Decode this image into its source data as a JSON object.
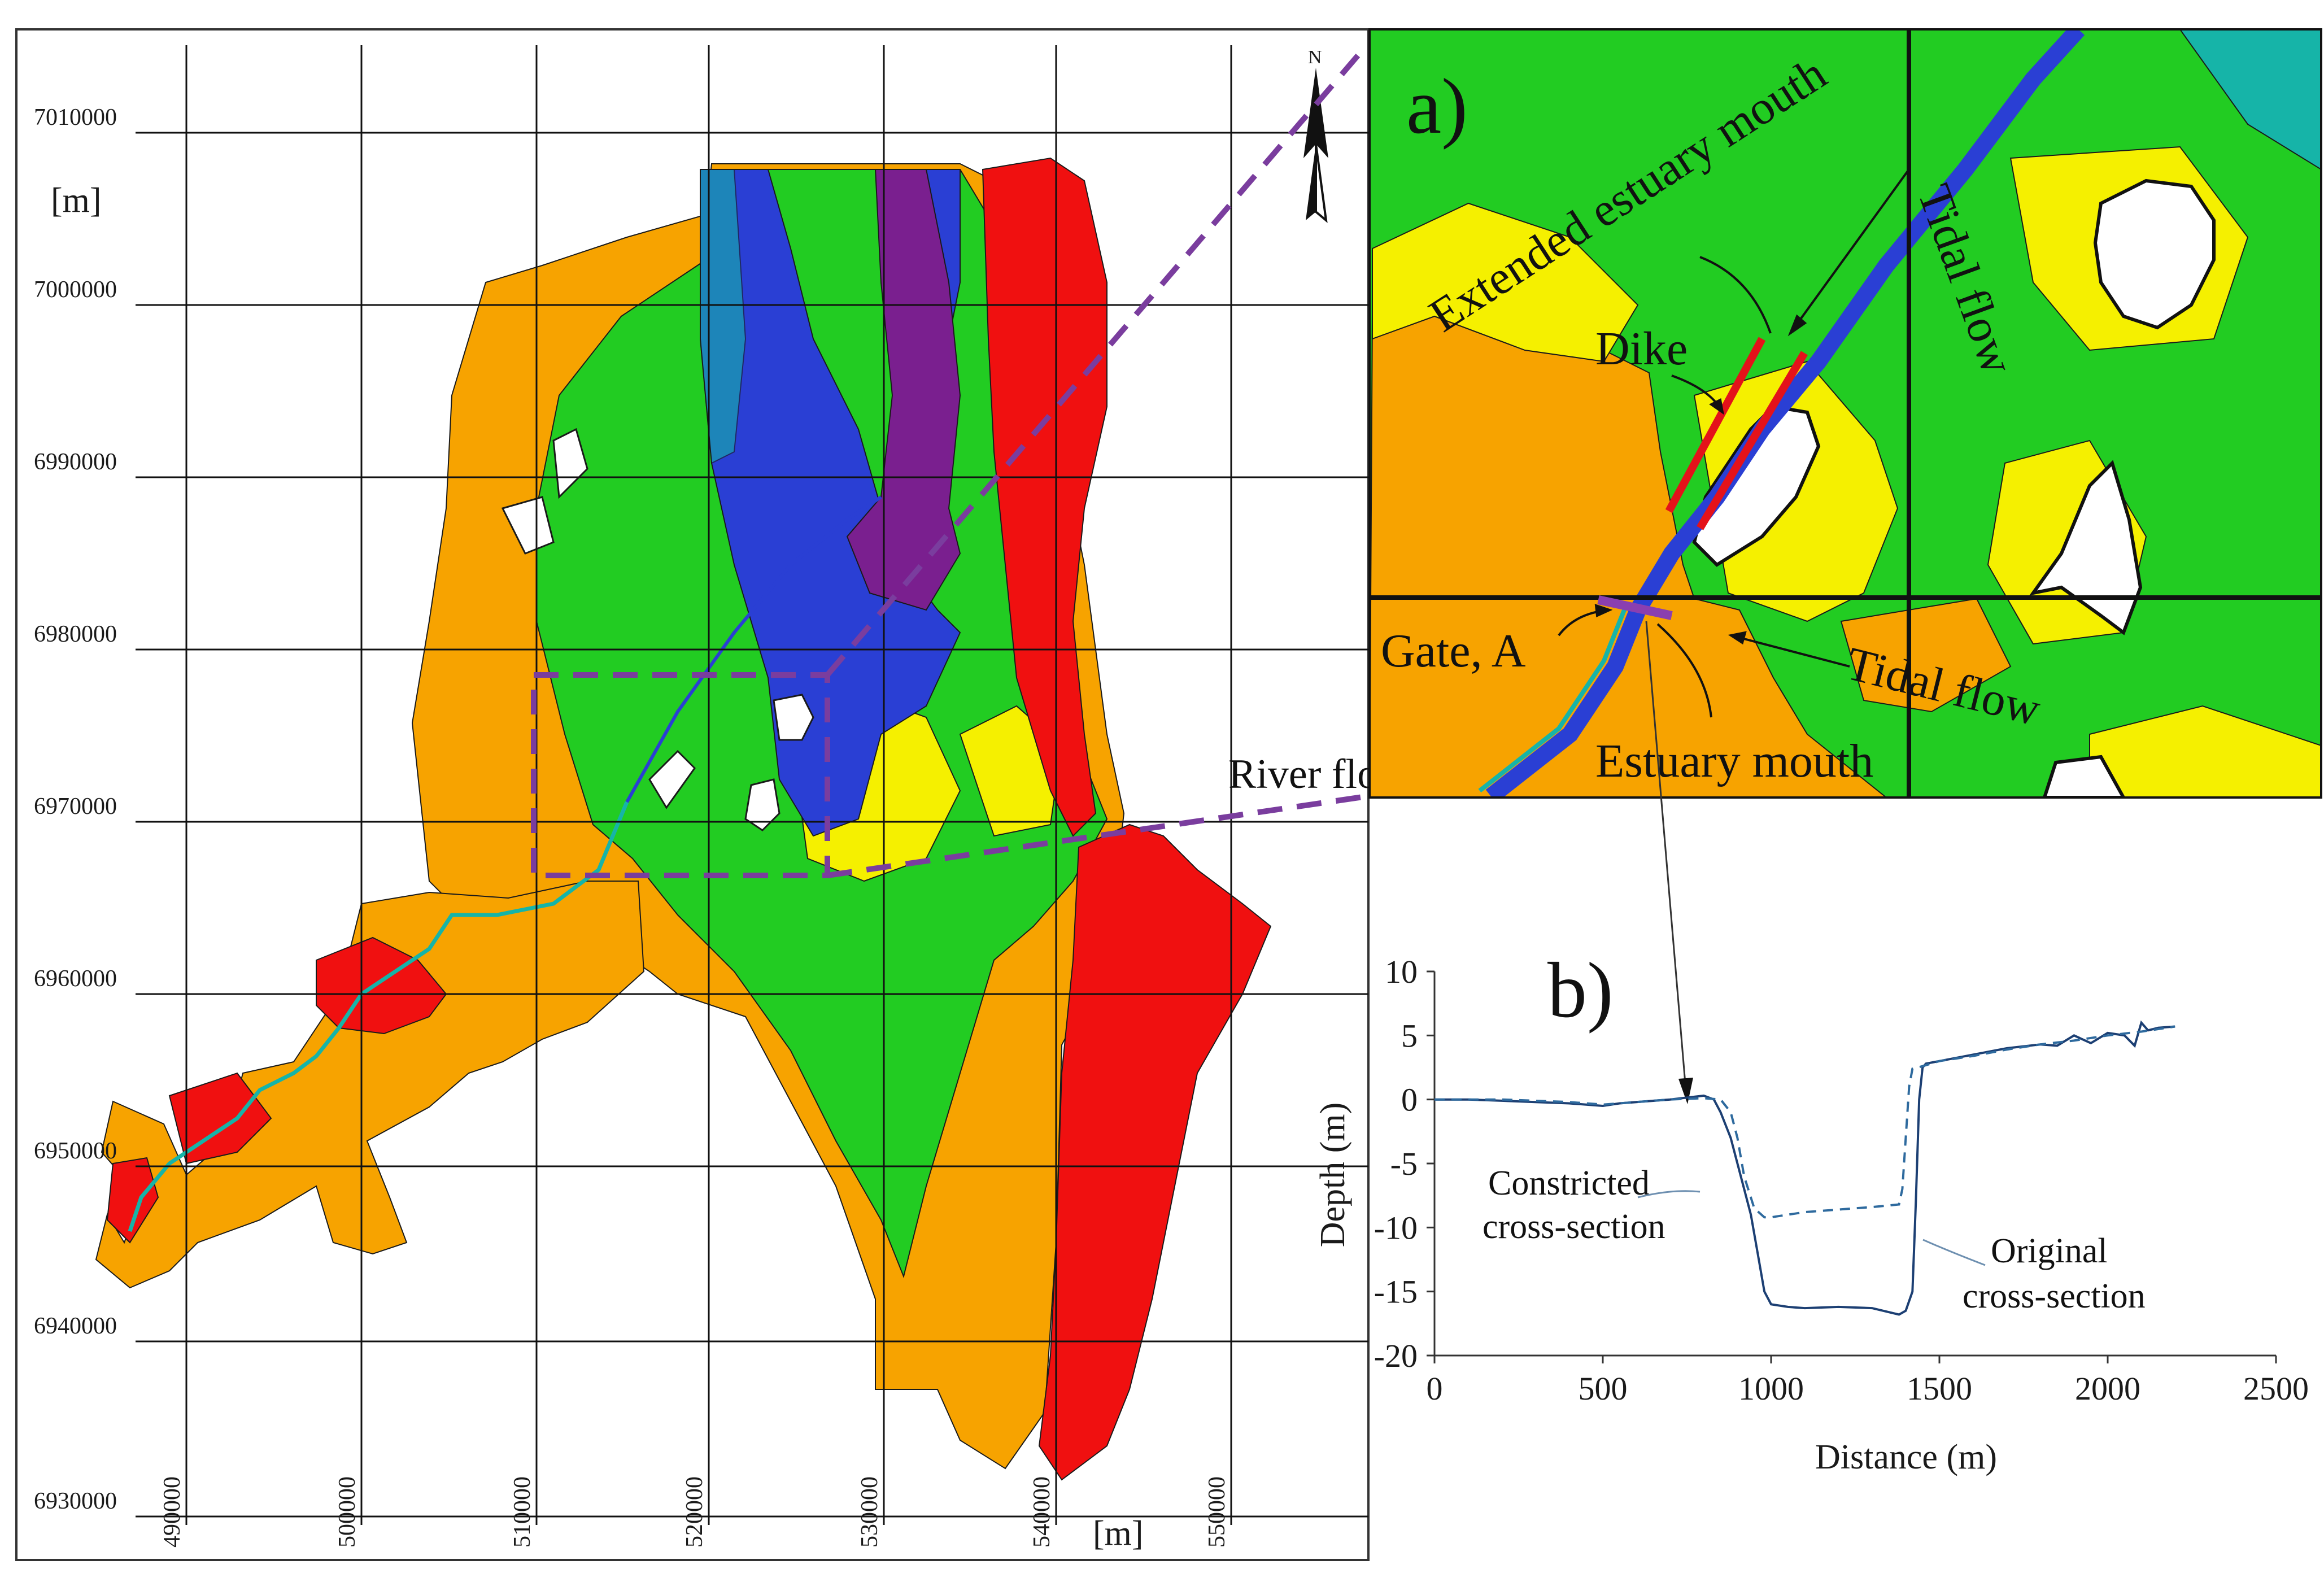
{
  "map": {
    "unit_y": "[m]",
    "unit_x": "[m]",
    "north_symbol": "N",
    "northings": [
      "7010000",
      "7000000",
      "6990000",
      "6980000",
      "6970000",
      "6960000",
      "6950000",
      "6940000",
      "6930000"
    ],
    "eastings": [
      "490000",
      "500000",
      "510000",
      "520000",
      "530000",
      "540000",
      "550000"
    ],
    "river_flow_label": "River flow",
    "colors": {
      "deep": "#7a1f8f",
      "blue": "#2a3fd4",
      "teal": "#16b4a8",
      "green": "#22cc22",
      "yellow": "#f5f000",
      "orange": "#f7a300",
      "red": "#f01010",
      "outline": "#1a1a1a",
      "zoom_box": "#7a3d9e"
    }
  },
  "inset_a": {
    "label": "a)",
    "extended_estuary_mouth": "Extended estuary mouth",
    "tidal_flow_top": "Tidal flow",
    "dike": "Dike",
    "gate": "Gate, A",
    "tidal_flow_bottom": "Tidal flow",
    "estuary_mouth": "Estuary mouth"
  },
  "chart_b": {
    "label": "b)",
    "annotation_constricted_line1": "Constricted",
    "annotation_constricted_line2": "cross-section",
    "annotation_original_line1": "Original",
    "annotation_original_line2": "cross-section"
  },
  "chart_data": {
    "type": "line",
    "xlabel": "Distance (m)",
    "ylabel": "Depth (m)",
    "xlim": [
      0,
      2500
    ],
    "ylim": [
      -20,
      10
    ],
    "xticks": [
      "0",
      "500",
      "1000",
      "1500",
      "2000",
      "2500"
    ],
    "yticks": [
      "10",
      "5",
      "0",
      "-5",
      "-10",
      "-15",
      "-20"
    ],
    "grid": false,
    "series": [
      {
        "style": "solid",
        "x": [
          0,
          100,
          200,
          300,
          400,
          500,
          550,
          600,
          700,
          800,
          830,
          850,
          880,
          900,
          920,
          940,
          960,
          980,
          1000,
          1050,
          1100,
          1200,
          1300,
          1380,
          1400,
          1420,
          1430,
          1440,
          1450,
          1460,
          1500,
          1600,
          1700,
          1800,
          1850,
          1900,
          1950,
          2000,
          2050,
          2080,
          2100,
          2120,
          2150,
          2200
        ],
        "y": [
          0,
          0,
          -0.1,
          -0.2,
          -0.3,
          -0.5,
          -0.3,
          -0.2,
          0,
          0.3,
          0,
          -1,
          -3,
          -5,
          -7,
          -9,
          -12,
          -15,
          -16,
          -16.2,
          -16.3,
          -16.2,
          -16.3,
          -16.8,
          -16.5,
          -15,
          -8,
          0,
          2.5,
          2.8,
          3,
          3.5,
          4,
          4.3,
          4.2,
          5,
          4.4,
          5.2,
          5,
          4.2,
          6,
          5.4,
          5.6,
          5.7
        ]
      },
      {
        "style": "dashed",
        "x": [
          0,
          200,
          400,
          500,
          600,
          700,
          800,
          850,
          880,
          900,
          920,
          950,
          980,
          1000,
          1100,
          1200,
          1300,
          1380,
          1390,
          1400,
          1410,
          1420,
          1450,
          1500,
          1600,
          1700,
          1800,
          1900,
          2000,
          2100,
          2200
        ],
        "y": [
          0,
          0,
          -0.2,
          -0.4,
          -0.2,
          0,
          0.1,
          0,
          -1,
          -3,
          -6,
          -8.5,
          -9.2,
          -9.2,
          -8.8,
          -8.6,
          -8.4,
          -8.2,
          -7,
          -3,
          1,
          2.4,
          2.6,
          3,
          3.4,
          3.9,
          4.3,
          4.6,
          5,
          5.3,
          5.7
        ]
      }
    ]
  }
}
